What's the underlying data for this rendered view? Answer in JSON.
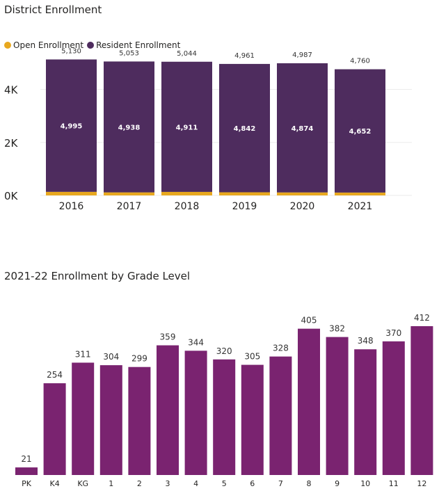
{
  "chart_data": [
    {
      "type": "bar",
      "stacked": true,
      "title": "District Enrollment",
      "categories": [
        "2016",
        "2017",
        "2018",
        "2019",
        "2020",
        "2021"
      ],
      "series": [
        {
          "name": "Open Enrollment",
          "color": "#E8A81F",
          "values": [
            135,
            115,
            133,
            119,
            113,
            108
          ]
        },
        {
          "name": "Resident Enrollment",
          "color": "#4E2C5E",
          "values": [
            4995,
            4938,
            4911,
            4842,
            4874,
            4652
          ]
        }
      ],
      "totals": [
        "5,130",
        "5,053",
        "5,044",
        "4,961",
        "4,987",
        "4,760"
      ],
      "segment_labels": [
        "4,995",
        "4,938",
        "4,911",
        "4,842",
        "4,874",
        "4,652"
      ],
      "y_ticks": [
        "0K",
        "2K",
        "4K"
      ],
      "y_tick_values": [
        0,
        2000,
        4000
      ],
      "ylim": [
        0,
        5300
      ],
      "grid": true,
      "legend": "top-left"
    },
    {
      "type": "bar",
      "title": "2021-22 Enrollment by Grade Level",
      "categories": [
        "PK",
        "K4",
        "KG",
        "1",
        "2",
        "3",
        "4",
        "5",
        "6",
        "7",
        "8",
        "9",
        "10",
        "11",
        "12"
      ],
      "values": [
        21,
        254,
        311,
        304,
        299,
        359,
        344,
        320,
        305,
        328,
        405,
        382,
        348,
        370,
        412
      ],
      "color": "#7A2370",
      "ylim": [
        0,
        440
      ]
    }
  ]
}
